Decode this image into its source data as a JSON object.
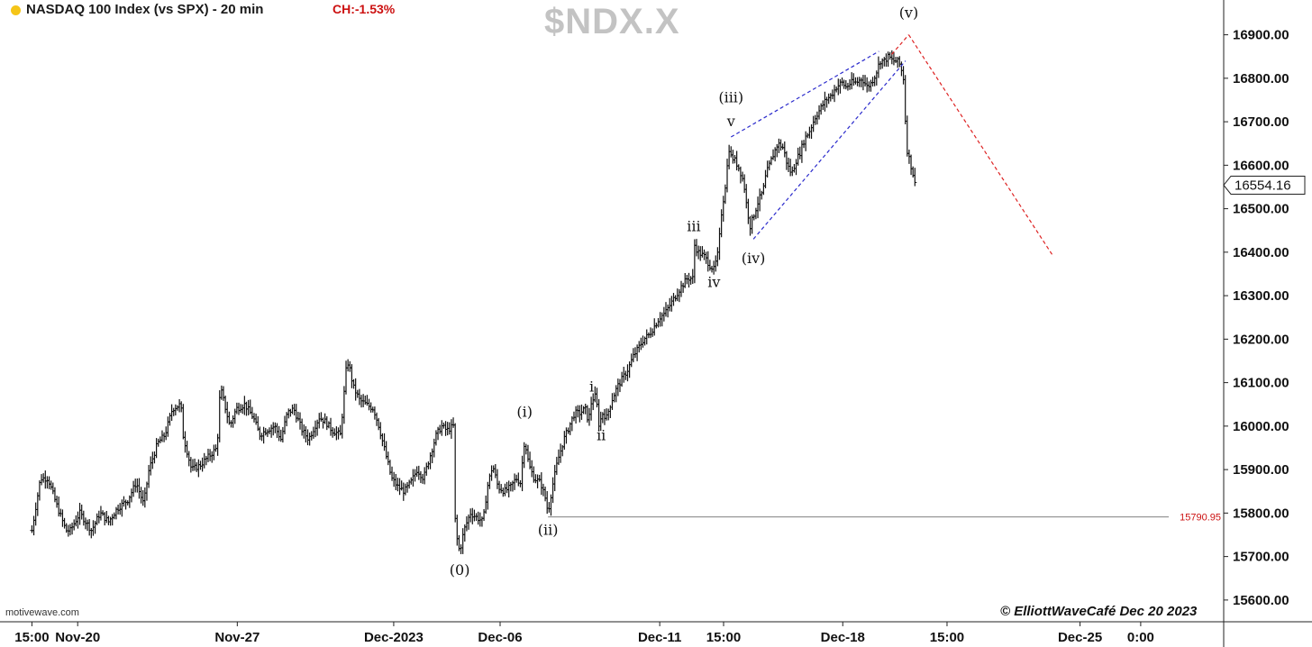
{
  "header": {
    "title": "NASDAQ 100 Index (vs SPX) - 20 min",
    "change": "CH:-1.53%",
    "symbol": "$NDX.X"
  },
  "footer": {
    "watermark": "motivewave.com",
    "copyright": "© ElliottWaveCafé Dec 20 2023"
  },
  "colors": {
    "bars": "#111111",
    "channel": "#2a2acc",
    "projection": "#dd2222",
    "level_line": "#555555",
    "level_label": "#cc1111",
    "indicator": "#f5c518"
  },
  "chart_data": {
    "type": "ohlc",
    "title": "NASDAQ 100 Index (vs SPX) - 20 min",
    "symbol": "$NDX.X",
    "interval": "20 min",
    "y_axis": {
      "position": "right",
      "ylim": [
        15550,
        16980
      ],
      "ticks": [
        "15600.00",
        "15700.00",
        "15800.00",
        "15900.00",
        "16000.00",
        "16100.00",
        "16200.00",
        "16300.00",
        "16400.00",
        "16500.00",
        "16600.00",
        "16700.00",
        "16800.00",
        "16900.00"
      ],
      "tick_values": [
        15600,
        15700,
        15800,
        15900,
        16000,
        16100,
        16200,
        16300,
        16400,
        16500,
        16600,
        16700,
        16800,
        16900
      ]
    },
    "x_axis": {
      "tick_labels": [
        "15:00",
        "Nov-20",
        "Nov-27",
        "Dec-2023",
        "Dec-06",
        "Dec-11",
        "15:00",
        "Dec-18",
        "15:00",
        "Dec-25",
        "0:00"
      ],
      "tick_positions": [
        0.0,
        4.3,
        19.3,
        34.0,
        44.0,
        59.0,
        65.0,
        76.2,
        86.0,
        98.5,
        104.2
      ],
      "xlim": [
        -3,
        112
      ]
    },
    "current_price": "16554.16",
    "current_value": 16554.16,
    "level": {
      "label": "15790.95",
      "value": 15790.95,
      "x_start": 48.5
    },
    "price_path": [
      [
        0.0,
        15760
      ],
      [
        0.8,
        15880
      ],
      [
        1.5,
        15880
      ],
      [
        2.3,
        15820
      ],
      [
        3.2,
        15760
      ],
      [
        3.6,
        15760
      ],
      [
        4.5,
        15800
      ],
      [
        5.6,
        15760
      ],
      [
        6.4,
        15800
      ],
      [
        7.2,
        15780
      ],
      [
        8.0,
        15810
      ],
      [
        9.0,
        15830
      ],
      [
        9.8,
        15870
      ],
      [
        10.5,
        15820
      ],
      [
        11.0,
        15900
      ],
      [
        11.8,
        15960
      ],
      [
        12.5,
        15980
      ],
      [
        13.2,
        16040
      ],
      [
        14.0,
        16050
      ],
      [
        14.2,
        15980
      ],
      [
        14.6,
        15940
      ],
      [
        15.0,
        15900
      ],
      [
        15.8,
        15910
      ],
      [
        16.6,
        15930
      ],
      [
        17.4,
        15950
      ],
      [
        17.7,
        16090
      ],
      [
        18.1,
        16050
      ],
      [
        18.6,
        16000
      ],
      [
        19.2,
        16040
      ],
      [
        20.0,
        16050
      ],
      [
        20.8,
        16020
      ],
      [
        21.4,
        15980
      ],
      [
        22.0,
        15990
      ],
      [
        22.8,
        16000
      ],
      [
        23.4,
        15970
      ],
      [
        24.0,
        16030
      ],
      [
        24.6,
        16040
      ],
      [
        25.4,
        15990
      ],
      [
        26.0,
        15970
      ],
      [
        27.0,
        16020
      ],
      [
        27.6,
        16010
      ],
      [
        28.2,
        15990
      ],
      [
        29.0,
        15980
      ],
      [
        29.6,
        16150
      ],
      [
        29.8,
        16140
      ],
      [
        30.2,
        16090
      ],
      [
        30.8,
        16060
      ],
      [
        31.4,
        16050
      ],
      [
        32.1,
        16040
      ],
      [
        32.6,
        16000
      ],
      [
        33.2,
        15940
      ],
      [
        33.8,
        15880
      ],
      [
        34.4,
        15860
      ],
      [
        35.0,
        15850
      ],
      [
        35.6,
        15870
      ],
      [
        36.2,
        15900
      ],
      [
        36.8,
        15880
      ],
      [
        37.4,
        15930
      ],
      [
        38.0,
        15980
      ],
      [
        38.5,
        16000
      ],
      [
        39.0,
        15990
      ],
      [
        39.6,
        16000
      ],
      [
        39.8,
        15760
      ],
      [
        40.2,
        15710
      ],
      [
        40.6,
        15760
      ],
      [
        41.2,
        15800
      ],
      [
        41.8,
        15790
      ],
      [
        42.4,
        15780
      ],
      [
        42.8,
        15860
      ],
      [
        43.3,
        15910
      ],
      [
        43.8,
        15860
      ],
      [
        44.4,
        15850
      ],
      [
        45.0,
        15860
      ],
      [
        45.5,
        15880
      ],
      [
        45.9,
        15870
      ],
      [
        46.3,
        15970
      ],
      [
        46.7,
        15910
      ],
      [
        47.2,
        15880
      ],
      [
        47.8,
        15870
      ],
      [
        48.3,
        15830
      ],
      [
        48.5,
        15800
      ],
      [
        48.9,
        15860
      ],
      [
        49.4,
        15920
      ],
      [
        50.0,
        15970
      ],
      [
        50.5,
        16000
      ],
      [
        51.0,
        16030
      ],
      [
        51.5,
        16030
      ],
      [
        52.0,
        16040
      ],
      [
        52.3,
        16010
      ],
      [
        52.6,
        16060
      ],
      [
        53.0,
        16070
      ],
      [
        53.3,
        16000
      ],
      [
        53.6,
        16030
      ],
      [
        54.0,
        16020
      ],
      [
        54.5,
        16060
      ],
      [
        55.0,
        16090
      ],
      [
        55.5,
        16110
      ],
      [
        56.0,
        16130
      ],
      [
        56.5,
        16160
      ],
      [
        57.0,
        16180
      ],
      [
        57.5,
        16200
      ],
      [
        58.0,
        16210
      ],
      [
        58.5,
        16230
      ],
      [
        59.0,
        16250
      ],
      [
        59.5,
        16260
      ],
      [
        60.0,
        16280
      ],
      [
        60.5,
        16300
      ],
      [
        61.0,
        16320
      ],
      [
        61.6,
        16340
      ],
      [
        62.1,
        16340
      ],
      [
        62.2,
        16420
      ],
      [
        62.6,
        16400
      ],
      [
        63.2,
        16390
      ],
      [
        63.7,
        16370
      ],
      [
        64.1,
        16360
      ],
      [
        64.5,
        16400
      ],
      [
        64.8,
        16490
      ],
      [
        65.2,
        16560
      ],
      [
        65.5,
        16640
      ],
      [
        65.7,
        16620
      ],
      [
        66.1,
        16610
      ],
      [
        66.5,
        16590
      ],
      [
        66.9,
        16560
      ],
      [
        67.2,
        16500
      ],
      [
        67.5,
        16460
      ],
      [
        67.9,
        16490
      ],
      [
        68.3,
        16520
      ],
      [
        68.7,
        16540
      ],
      [
        69.0,
        16580
      ],
      [
        69.6,
        16620
      ],
      [
        70.1,
        16650
      ],
      [
        70.6,
        16640
      ],
      [
        71.0,
        16600
      ],
      [
        71.4,
        16580
      ],
      [
        71.8,
        16610
      ],
      [
        72.2,
        16630
      ],
      [
        72.6,
        16660
      ],
      [
        73.1,
        16680
      ],
      [
        73.6,
        16710
      ],
      [
        74.1,
        16730
      ],
      [
        74.6,
        16750
      ],
      [
        75.1,
        16760
      ],
      [
        75.6,
        16780
      ],
      [
        76.1,
        16790
      ],
      [
        76.5,
        16780
      ],
      [
        77.0,
        16790
      ],
      [
        77.5,
        16790
      ],
      [
        78.0,
        16800
      ],
      [
        78.5,
        16780
      ],
      [
        78.9,
        16790
      ],
      [
        79.3,
        16810
      ],
      [
        79.7,
        16840
      ],
      [
        80.1,
        16840
      ],
      [
        80.5,
        16850
      ],
      [
        80.9,
        16840
      ],
      [
        81.3,
        16840
      ],
      [
        81.6,
        16830
      ],
      [
        81.9,
        16800
      ],
      [
        82.2,
        16640
      ],
      [
        82.5,
        16610
      ],
      [
        82.8,
        16580
      ],
      [
        83.0,
        16554
      ]
    ],
    "channel_lines": [
      [
        [
          65.7,
          16665
        ],
        [
          79.6,
          16862
        ]
      ],
      [
        [
          67.8,
          16430
        ],
        [
          82.1,
          16840
        ]
      ]
    ],
    "projection_lines": [
      [
        [
          80.8,
          16855
        ],
        [
          82.4,
          16900
        ]
      ],
      [
        [
          82.4,
          16900
        ],
        [
          96.0,
          16390
        ]
      ]
    ],
    "wave_labels": [
      {
        "text": "(0)",
        "x": 40.2,
        "y": 15658
      },
      {
        "text": "(i)",
        "x": 46.3,
        "y": 16022
      },
      {
        "text": "(ii)",
        "x": 48.5,
        "y": 15750
      },
      {
        "text": "i",
        "x": 52.6,
        "y": 16080
      },
      {
        "text": "ii",
        "x": 53.5,
        "y": 15968
      },
      {
        "text": "iii",
        "x": 62.2,
        "y": 16448
      },
      {
        "text": "iv",
        "x": 64.1,
        "y": 16320
      },
      {
        "text": "(iii)",
        "x": 65.7,
        "y": 16745
      },
      {
        "text": "v",
        "x": 65.7,
        "y": 16690
      },
      {
        "text": "(iv)",
        "x": 67.8,
        "y": 16375
      },
      {
        "text": "(v)",
        "x": 82.4,
        "y": 16940
      }
    ]
  }
}
